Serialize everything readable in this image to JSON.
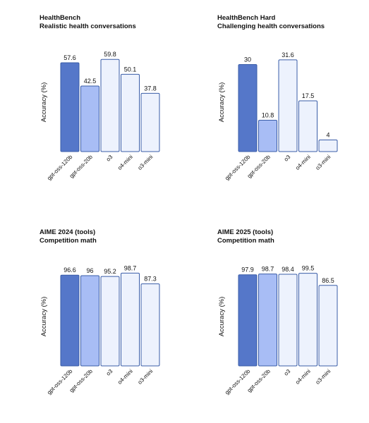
{
  "colors": {
    "dark": "#5577c9",
    "mid": "#a8bdf5",
    "light": "#edf2fd",
    "stroke": "#3a5da8",
    "text": "#111111"
  },
  "chart_data": [
    {
      "type": "bar",
      "title": "HealthBench",
      "subtitle": "Realistic health conversations",
      "ylabel": "Accuracy (%)",
      "categories": [
        "gpt-oss-120b",
        "gpt-oss-20b",
        "o3",
        "o4-mini",
        "o3-mini"
      ],
      "values": [
        57.6,
        42.5,
        59.8,
        50.1,
        37.8
      ],
      "value_labels": [
        "57.6",
        "42.5",
        "59.8",
        "50.1",
        "37.8"
      ],
      "ylim": [
        0,
        64
      ],
      "grid": false
    },
    {
      "type": "bar",
      "title": "HealthBench Hard",
      "subtitle": "Challenging health conversations",
      "ylabel": "Accuracy (%)",
      "categories": [
        "gpt-oss-120b",
        "gpt-oss-20b",
        "o3",
        "o4-mini",
        "o3-mini"
      ],
      "values": [
        30,
        10.8,
        31.6,
        17.5,
        4
      ],
      "value_labels": [
        "30",
        "10.8",
        "31.6",
        "17.5",
        "4"
      ],
      "ylim": [
        0,
        34
      ],
      "grid": false
    },
    {
      "type": "bar",
      "title": "AIME 2024 (tools)",
      "subtitle": "Competition math",
      "ylabel": "Accuracy (%)",
      "categories": [
        "gpt-oss-120b",
        "gpt-oss-20b",
        "o3",
        "o4-mini",
        "o3-mini"
      ],
      "values": [
        96.6,
        96,
        95.2,
        98.7,
        87.3
      ],
      "value_labels": [
        "96.6",
        "96",
        "95.2",
        "98.7",
        "87.3"
      ],
      "ylim": [
        0,
        105
      ],
      "grid": false
    },
    {
      "type": "bar",
      "title": "AIME 2025 (tools)",
      "subtitle": "Competition math",
      "ylabel": "Accuracy (%)",
      "categories": [
        "gpt-oss-120b",
        "gpt-oss-20b",
        "o3",
        "o4-mini",
        "o3-mini"
      ],
      "values": [
        97.9,
        98.7,
        98.4,
        99.5,
        86.5
      ],
      "value_labels": [
        "97.9",
        "98.7",
        "98.4",
        "99.5",
        "86.5"
      ],
      "ylim": [
        0,
        106
      ],
      "grid": false
    }
  ]
}
